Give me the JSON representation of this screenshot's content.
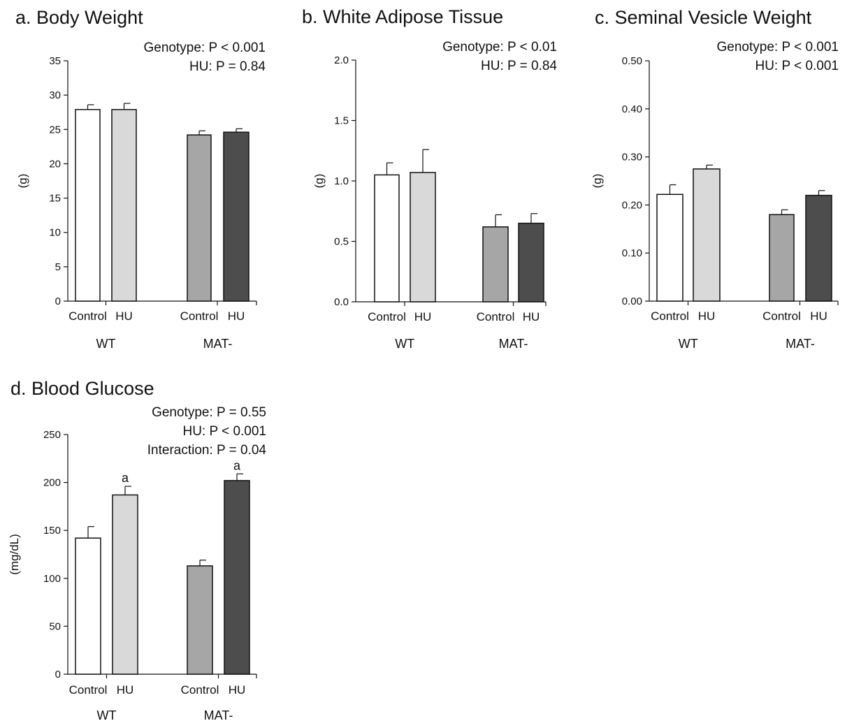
{
  "palette": {
    "wt_control": "#ffffff",
    "wt_hu": "#d9d9d9",
    "mat_control": "#a6a6a6",
    "mat_hu": "#4d4d4d"
  },
  "chart_data": [
    {
      "type": "bar",
      "title": "a.  Body Weight",
      "stats": [
        "Genotype:  P < 0.001",
        "HU:  P = 0.84"
      ],
      "ylabel": "(g)",
      "ylim": [
        0,
        35
      ],
      "yticks": [
        "0",
        "5",
        "10",
        "15",
        "20",
        "25",
        "30",
        "35"
      ],
      "groups": [
        {
          "name": "WT",
          "bars": [
            {
              "label": "Control",
              "value": 27.9,
              "error": 0.7,
              "color": "#ffffff"
            },
            {
              "label": "HU",
              "value": 27.9,
              "error": 0.9,
              "color": "#d9d9d9"
            }
          ]
        },
        {
          "name": "MAT-",
          "bars": [
            {
              "label": "Control",
              "value": 24.2,
              "error": 0.6,
              "color": "#a6a6a6"
            },
            {
              "label": "HU",
              "value": 24.6,
              "error": 0.5,
              "color": "#4d4d4d"
            }
          ]
        }
      ]
    },
    {
      "type": "bar",
      "title": "b.  White Adipose Tissue",
      "stats": [
        "Genotype:  P < 0.01",
        "HU:  P = 0.84"
      ],
      "ylabel": "(g)",
      "ylim": [
        0,
        2.0
      ],
      "yticks": [
        "0.0",
        "0.5",
        "1.0",
        "1.5",
        "2.0"
      ],
      "groups": [
        {
          "name": "WT",
          "bars": [
            {
              "label": "Control",
              "value": 1.05,
              "error": 0.1,
              "color": "#ffffff"
            },
            {
              "label": "HU",
              "value": 1.07,
              "error": 0.19,
              "color": "#d9d9d9"
            }
          ]
        },
        {
          "name": "MAT-",
          "bars": [
            {
              "label": "Control",
              "value": 0.62,
              "error": 0.1,
              "color": "#a6a6a6"
            },
            {
              "label": "HU",
              "value": 0.65,
              "error": 0.08,
              "color": "#4d4d4d"
            }
          ]
        }
      ]
    },
    {
      "type": "bar",
      "title": "c.  Seminal Vesicle Weight",
      "stats": [
        "Genotype:  P < 0.001",
        "HU:  P < 0.001"
      ],
      "ylabel": "(g)",
      "ylim": [
        0,
        0.5
      ],
      "yticks": [
        "0.00",
        "0.10",
        "0.20",
        "0.30",
        "0.40",
        "0.50"
      ],
      "groups": [
        {
          "name": "WT",
          "bars": [
            {
              "label": "Control",
              "value": 0.222,
              "error": 0.02,
              "color": "#ffffff"
            },
            {
              "label": "HU",
              "value": 0.275,
              "error": 0.008,
              "color": "#d9d9d9"
            }
          ]
        },
        {
          "name": "MAT-",
          "bars": [
            {
              "label": "Control",
              "value": 0.18,
              "error": 0.01,
              "color": "#a6a6a6"
            },
            {
              "label": "HU",
              "value": 0.22,
              "error": 0.01,
              "color": "#4d4d4d"
            }
          ]
        }
      ]
    },
    {
      "type": "bar",
      "title": "d.  Blood Glucose",
      "stats": [
        "Genotype:  P = 0.55",
        "HU:  P < 0.001",
        "Interaction:  P = 0.04"
      ],
      "ylabel": "(mg/dL)",
      "ylim": [
        0,
        250
      ],
      "yticks": [
        "0",
        "50",
        "100",
        "150",
        "200",
        "250"
      ],
      "groups": [
        {
          "name": "WT",
          "bars": [
            {
              "label": "Control",
              "value": 142,
              "error": 12,
              "color": "#ffffff"
            },
            {
              "label": "HU",
              "value": 187,
              "error": 9,
              "color": "#d9d9d9",
              "annotation": "a"
            }
          ]
        },
        {
          "name": "MAT-",
          "bars": [
            {
              "label": "Control",
              "value": 113,
              "error": 6,
              "color": "#a6a6a6"
            },
            {
              "label": "HU",
              "value": 202,
              "error": 7,
              "color": "#4d4d4d",
              "annotation": "a"
            }
          ]
        }
      ]
    }
  ]
}
